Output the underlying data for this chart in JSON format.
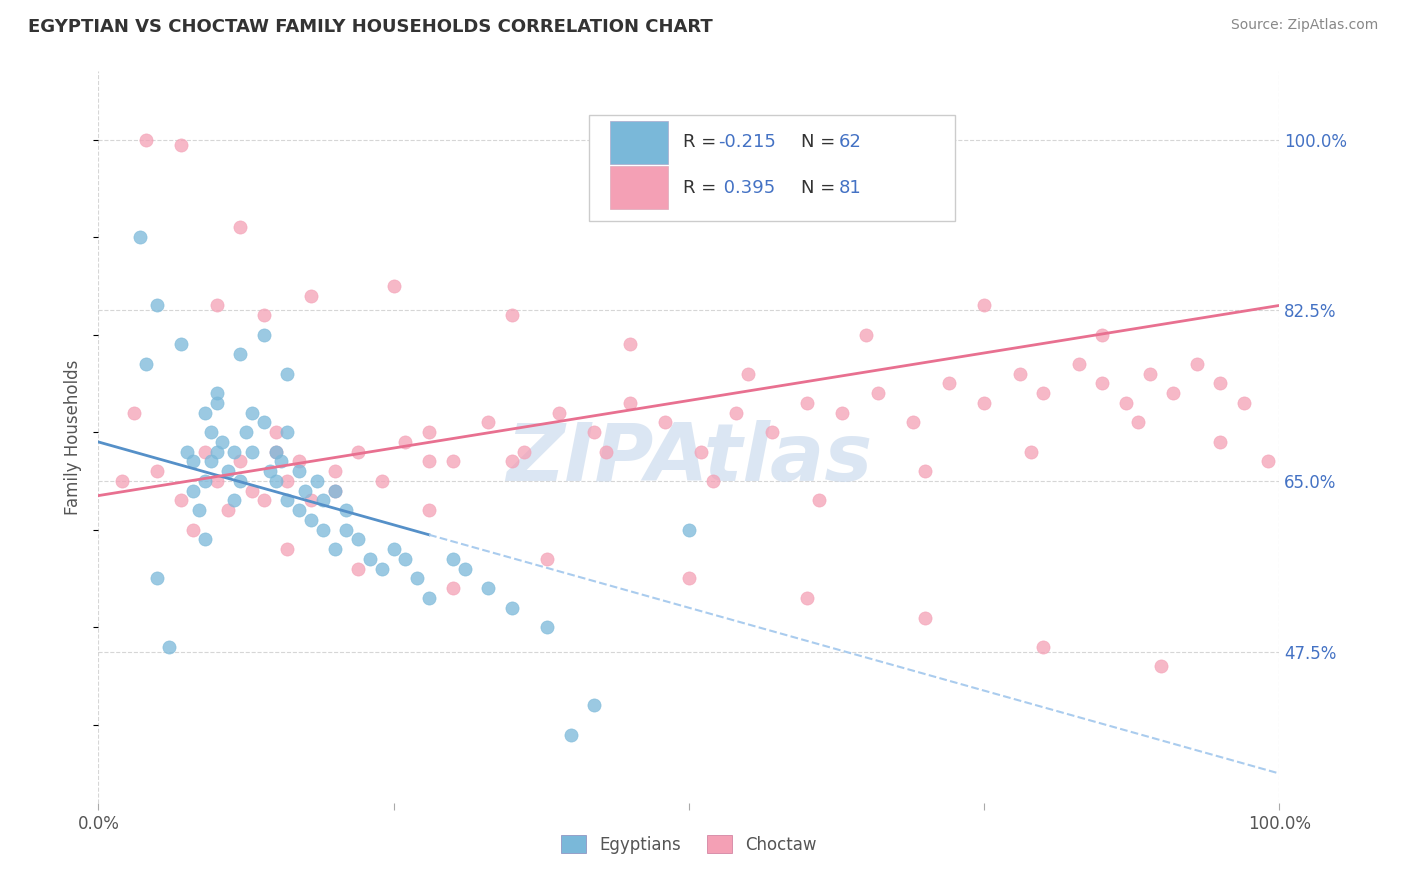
{
  "title": "EGYPTIAN VS CHOCTAW FAMILY HOUSEHOLDS CORRELATION CHART",
  "source": "Source: ZipAtlas.com",
  "ylabel": "Family Households",
  "xlim": [
    0.0,
    100.0
  ],
  "ylim": [
    32.0,
    107.0
  ],
  "yticks": [
    47.5,
    65.0,
    82.5,
    100.0
  ],
  "xtick_labels": [
    "0.0%",
    "",
    "",
    "",
    "100.0%"
  ],
  "ytick_labels": [
    "47.5%",
    "65.0%",
    "82.5%",
    "100.0%"
  ],
  "color_blue": "#7ab8d9",
  "color_pink": "#f4a0b5",
  "color_trend_blue_solid": "#5590c8",
  "color_trend_blue_dash": "#aaccee",
  "color_trend_pink": "#e87090",
  "color_grid": "#cccccc",
  "color_rn_blue": "#4472c4",
  "color_rn_pink": "#4472c4",
  "bg_color": "#ffffff",
  "watermark": "ZIPAtlas",
  "watermark_color": "#cddcee",
  "figsize": [
    14.06,
    8.92
  ],
  "dpi": 100,
  "blue_x": [
    3.5,
    4.0,
    5.0,
    7.0,
    7.5,
    8.0,
    8.0,
    8.5,
    9.0,
    9.0,
    9.5,
    9.5,
    10.0,
    10.0,
    10.5,
    11.0,
    11.5,
    11.5,
    12.0,
    12.5,
    13.0,
    13.0,
    14.0,
    14.5,
    15.0,
    15.0,
    15.5,
    16.0,
    16.0,
    17.0,
    17.0,
    17.5,
    18.0,
    18.5,
    19.0,
    19.0,
    20.0,
    20.0,
    21.0,
    21.0,
    22.0,
    23.0,
    24.0,
    25.0,
    26.0,
    27.0,
    28.0,
    30.0,
    31.0,
    33.0,
    35.0,
    38.0,
    5.0,
    6.0,
    9.0,
    10.0,
    12.0,
    14.0,
    16.0,
    40.0,
    42.0,
    50.0
  ],
  "blue_y": [
    90.0,
    77.0,
    83.0,
    79.0,
    68.0,
    67.0,
    64.0,
    62.0,
    65.0,
    72.0,
    67.0,
    70.0,
    68.0,
    73.0,
    69.0,
    66.0,
    63.0,
    68.0,
    65.0,
    70.0,
    68.0,
    72.0,
    71.0,
    66.0,
    68.0,
    65.0,
    67.0,
    70.0,
    63.0,
    62.0,
    66.0,
    64.0,
    61.0,
    65.0,
    63.0,
    60.0,
    58.0,
    64.0,
    60.0,
    62.0,
    59.0,
    57.0,
    56.0,
    58.0,
    57.0,
    55.0,
    53.0,
    57.0,
    56.0,
    54.0,
    52.0,
    50.0,
    55.0,
    48.0,
    59.0,
    74.0,
    78.0,
    80.0,
    76.0,
    39.0,
    42.0,
    60.0
  ],
  "pink_x": [
    2.0,
    3.0,
    5.0,
    7.0,
    9.0,
    10.0,
    11.0,
    12.0,
    13.0,
    14.0,
    15.0,
    16.0,
    17.0,
    18.0,
    20.0,
    22.0,
    24.0,
    26.0,
    28.0,
    30.0,
    33.0,
    36.0,
    39.0,
    42.0,
    45.0,
    48.0,
    51.0,
    54.0,
    57.0,
    60.0,
    63.0,
    66.0,
    69.0,
    72.0,
    75.0,
    78.0,
    80.0,
    83.0,
    85.0,
    87.0,
    89.0,
    91.0,
    93.0,
    95.0,
    97.0,
    99.0,
    25.0,
    35.0,
    45.0,
    55.0,
    65.0,
    75.0,
    85.0,
    8.0,
    16.0,
    22.0,
    30.0,
    38.0,
    50.0,
    60.0,
    70.0,
    80.0,
    90.0,
    15.0,
    20.0,
    28.0,
    35.0,
    43.0,
    52.0,
    61.0,
    70.0,
    79.0,
    88.0,
    95.0,
    4.0,
    7.0,
    10.0,
    12.0,
    14.0,
    18.0,
    28.0
  ],
  "pink_y": [
    65.0,
    72.0,
    66.0,
    63.0,
    68.0,
    65.0,
    62.0,
    67.0,
    64.0,
    63.0,
    68.0,
    65.0,
    67.0,
    63.0,
    66.0,
    68.0,
    65.0,
    69.0,
    70.0,
    67.0,
    71.0,
    68.0,
    72.0,
    70.0,
    73.0,
    71.0,
    68.0,
    72.0,
    70.0,
    73.0,
    72.0,
    74.0,
    71.0,
    75.0,
    73.0,
    76.0,
    74.0,
    77.0,
    75.0,
    73.0,
    76.0,
    74.0,
    77.0,
    75.0,
    73.0,
    67.0,
    85.0,
    82.0,
    79.0,
    76.0,
    80.0,
    83.0,
    80.0,
    60.0,
    58.0,
    56.0,
    54.0,
    57.0,
    55.0,
    53.0,
    51.0,
    48.0,
    46.0,
    70.0,
    64.0,
    62.0,
    67.0,
    68.0,
    65.0,
    63.0,
    66.0,
    68.0,
    71.0,
    69.0,
    100.0,
    99.5,
    83.0,
    91.0,
    82.0,
    84.0,
    67.0
  ],
  "blue_trend_x0": 0.0,
  "blue_trend_y0": 69.0,
  "blue_trend_x1": 100.0,
  "blue_trend_y1": 35.0,
  "blue_trend_solid_x1": 28.0,
  "pink_trend_x0": 0.0,
  "pink_trend_y0": 63.5,
  "pink_trend_x1": 100.0,
  "pink_trend_y1": 83.0
}
